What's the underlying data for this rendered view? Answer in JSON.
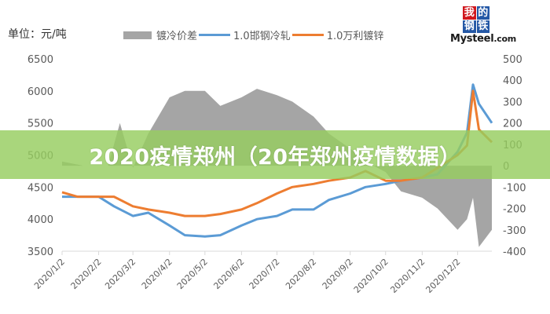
{
  "header": {
    "unit_label": "单位：元/吨",
    "legend": [
      {
        "label": "镀冷价差",
        "type": "area",
        "color": "#a5a5a5"
      },
      {
        "label": "1.0邯钢冷轧",
        "type": "line",
        "color": "#5b9bd5"
      },
      {
        "label": "1.0万利镀锌",
        "type": "line",
        "color": "#ed7d31"
      }
    ]
  },
  "logo": {
    "chars": [
      "我",
      "的",
      "钢",
      "铁"
    ],
    "brand": "Mysteel",
    "domain": ".com"
  },
  "banner": {
    "title": "2020疫情郑州（20年郑州疫情数据）",
    "color": "#96cd5f"
  },
  "chart_data": {
    "type": "line",
    "title": "",
    "xlabel": "",
    "ylabel": "单位：元/吨",
    "left_axis": {
      "ticks": [
        "6500",
        "6000",
        "5500",
        "5000",
        "4500",
        "4000",
        "3500"
      ],
      "ylim": [
        3500,
        6500
      ]
    },
    "right_axis": {
      "ticks": [
        "500",
        "400",
        "300",
        "200",
        "100",
        "0",
        "-100",
        "-200",
        "-300",
        "-400"
      ],
      "ylim": [
        -400,
        500
      ]
    },
    "categories": [
      "2020/1/2",
      "2020/2/2",
      "2020/3/2",
      "2020/4/2",
      "2020/5/2",
      "2020/6/2",
      "2020/7/2",
      "2020/8/2",
      "2020/9/2",
      "2020/10/2",
      "2020/11/2",
      "2020/12/2"
    ],
    "grid": false,
    "legend_position": "top",
    "series": [
      {
        "name": "1.0邯钢冷轧",
        "axis": "left",
        "color": "#5b9bd5",
        "x": [
          "2020/1/2",
          "2020/1/15",
          "2020/2/2",
          "2020/2/15",
          "2020/3/2",
          "2020/3/15",
          "2020/4/2",
          "2020/4/15",
          "2020/5/2",
          "2020/5/15",
          "2020/6/2",
          "2020/6/15",
          "2020/7/2",
          "2020/7/15",
          "2020/8/2",
          "2020/8/15",
          "2020/9/2",
          "2020/9/15",
          "2020/10/2",
          "2020/10/15",
          "2020/11/2",
          "2020/11/15",
          "2020/12/2",
          "2020/12/10",
          "2020/12/15",
          "2020/12/20",
          "2020/12/31"
        ],
        "values": [
          4350,
          4350,
          4350,
          4200,
          4050,
          4100,
          3900,
          3750,
          3730,
          3750,
          3900,
          4000,
          4050,
          4150,
          4150,
          4300,
          4400,
          4500,
          4550,
          4600,
          4650,
          4700,
          5050,
          5350,
          6100,
          5800,
          5500
        ]
      },
      {
        "name": "1.0万利镀锌",
        "axis": "left",
        "color": "#ed7d31",
        "x": [
          "2020/1/2",
          "2020/1/15",
          "2020/2/2",
          "2020/2/15",
          "2020/3/2",
          "2020/3/15",
          "2020/4/2",
          "2020/4/15",
          "2020/5/2",
          "2020/5/15",
          "2020/6/2",
          "2020/6/15",
          "2020/7/2",
          "2020/7/15",
          "2020/8/2",
          "2020/8/15",
          "2020/9/2",
          "2020/9/15",
          "2020/10/2",
          "2020/10/15",
          "2020/11/2",
          "2020/11/15",
          "2020/12/2",
          "2020/12/10",
          "2020/12/15",
          "2020/12/20",
          "2020/12/31"
        ],
        "values": [
          4420,
          4350,
          4350,
          4350,
          4200,
          4150,
          4100,
          4050,
          4050,
          4080,
          4150,
          4250,
          4400,
          4500,
          4550,
          4600,
          4650,
          4750,
          4600,
          4600,
          4650,
          4800,
          5000,
          5150,
          6000,
          5400,
          5200
        ]
      },
      {
        "name": "镀冷价差",
        "axis": "right",
        "color": "#a5a5a5",
        "x": [
          "2020/1/2",
          "2020/1/20",
          "2020/2/10",
          "2020/2/20",
          "2020/3/2",
          "2020/3/15",
          "2020/4/2",
          "2020/4/15",
          "2020/5/2",
          "2020/5/15",
          "2020/6/2",
          "2020/6/15",
          "2020/7/2",
          "2020/7/15",
          "2020/8/2",
          "2020/8/15",
          "2020/9/2",
          "2020/9/15",
          "2020/10/2",
          "2020/10/15",
          "2020/11/2",
          "2020/11/15",
          "2020/12/2",
          "2020/12/10",
          "2020/12/15",
          "2020/12/20",
          "2020/12/31"
        ],
        "values": [
          20,
          0,
          0,
          200,
          -10,
          150,
          320,
          350,
          350,
          280,
          320,
          360,
          330,
          300,
          230,
          150,
          80,
          20,
          -30,
          -120,
          -150,
          -200,
          -300,
          -250,
          -150,
          -380,
          -300
        ]
      }
    ]
  }
}
